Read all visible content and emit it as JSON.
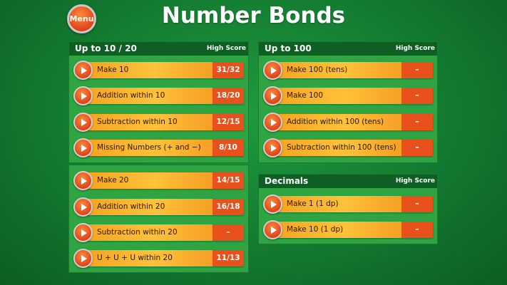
{
  "header": {
    "menu_label": "Menu",
    "title": "Number Bonds"
  },
  "panels": [
    {
      "title": "Up to 10 / 20",
      "high_score_label": "High Score",
      "items": [
        {
          "label": "Make 10",
          "score": "31/32"
        },
        {
          "label": "Addition within 10",
          "score": "18/20"
        },
        {
          "label": "Subtraction within 10",
          "score": "12/15"
        },
        {
          "label": "Missing Numbers (+ and −)",
          "score": "8/10"
        }
      ]
    },
    {
      "title": "",
      "items": [
        {
          "label": "Make 20",
          "score": "14/15"
        },
        {
          "label": "Addition within 20",
          "score": "16/18"
        },
        {
          "label": "Subtraction within 20",
          "score": "–"
        },
        {
          "label": "U + U + U within 20",
          "score": "11/13"
        }
      ]
    },
    {
      "title": "Up to 100",
      "high_score_label": "High Score",
      "items": [
        {
          "label": "Make 100 (tens)",
          "score": "–"
        },
        {
          "label": "Make 100",
          "score": "–"
        },
        {
          "label": "Addition within 100 (tens)",
          "score": "–"
        },
        {
          "label": "Subtraction within 100 (tens)",
          "score": "–"
        }
      ]
    },
    {
      "title": "Decimals",
      "high_score_label": "High Score",
      "items": [
        {
          "label": "Make 1 (1 dp)",
          "score": "–"
        },
        {
          "label": "Make 10 (1 dp)",
          "score": "–"
        }
      ]
    }
  ],
  "colors": {
    "accent": "#e8501c",
    "bar": "#f5a21e",
    "panel": "#2ea443",
    "header": "#0f5e24"
  }
}
